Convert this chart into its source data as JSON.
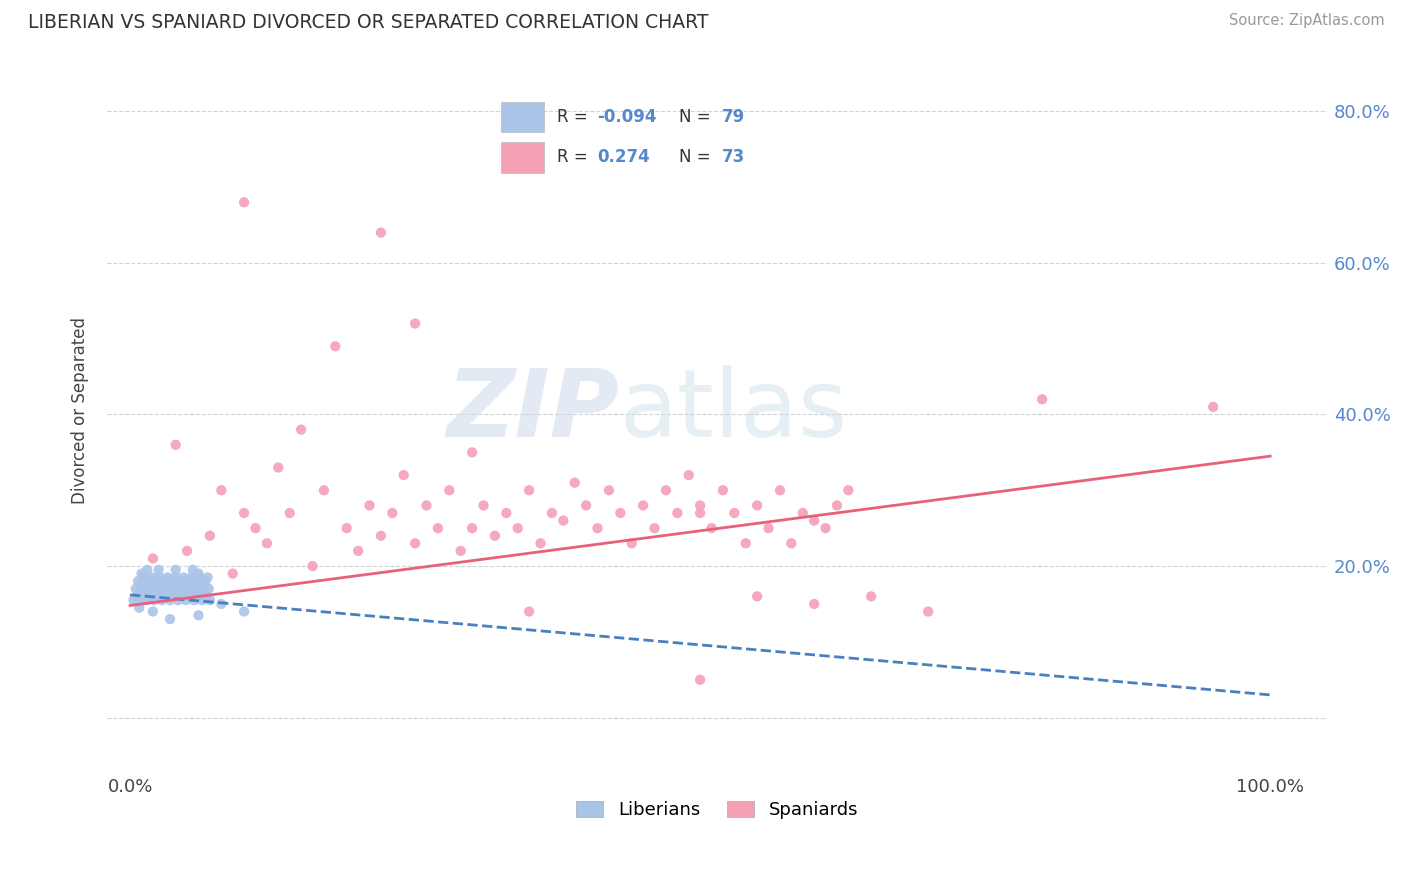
{
  "title": "LIBERIAN VS SPANIARD DIVORCED OR SEPARATED CORRELATION CHART",
  "source_text": "Source: ZipAtlas.com",
  "ylabel": "Divorced or Separated",
  "liberian_color": "#aac4e8",
  "spaniard_color": "#f5a0b5",
  "liberian_line_color": "#4a80c0",
  "spaniard_line_color": "#e8607a",
  "watermark_zip": "ZIP",
  "watermark_atlas": "atlas",
  "R_liberian": -0.094,
  "N_liberian": 79,
  "R_spaniard": 0.274,
  "N_spaniard": 73,
  "legend_labels": [
    "Liberians",
    "Spaniards"
  ],
  "liberian_points": [
    [
      0.003,
      0.155
    ],
    [
      0.005,
      0.17
    ],
    [
      0.006,
      0.16
    ],
    [
      0.007,
      0.18
    ],
    [
      0.008,
      0.165
    ],
    [
      0.009,
      0.155
    ],
    [
      0.01,
      0.175
    ],
    [
      0.011,
      0.185
    ],
    [
      0.012,
      0.16
    ],
    [
      0.013,
      0.17
    ],
    [
      0.014,
      0.155
    ],
    [
      0.015,
      0.18
    ],
    [
      0.016,
      0.165
    ],
    [
      0.017,
      0.175
    ],
    [
      0.018,
      0.16
    ],
    [
      0.019,
      0.185
    ],
    [
      0.02,
      0.17
    ],
    [
      0.021,
      0.155
    ],
    [
      0.022,
      0.175
    ],
    [
      0.023,
      0.165
    ],
    [
      0.024,
      0.18
    ],
    [
      0.025,
      0.16
    ],
    [
      0.026,
      0.185
    ],
    [
      0.027,
      0.17
    ],
    [
      0.028,
      0.155
    ],
    [
      0.029,
      0.175
    ],
    [
      0.03,
      0.165
    ],
    [
      0.031,
      0.18
    ],
    [
      0.032,
      0.16
    ],
    [
      0.033,
      0.185
    ],
    [
      0.034,
      0.17
    ],
    [
      0.035,
      0.155
    ],
    [
      0.036,
      0.175
    ],
    [
      0.037,
      0.165
    ],
    [
      0.038,
      0.18
    ],
    [
      0.039,
      0.16
    ],
    [
      0.04,
      0.185
    ],
    [
      0.041,
      0.17
    ],
    [
      0.042,
      0.155
    ],
    [
      0.043,
      0.175
    ],
    [
      0.044,
      0.165
    ],
    [
      0.045,
      0.18
    ],
    [
      0.046,
      0.16
    ],
    [
      0.047,
      0.185
    ],
    [
      0.048,
      0.17
    ],
    [
      0.049,
      0.155
    ],
    [
      0.05,
      0.175
    ],
    [
      0.051,
      0.165
    ],
    [
      0.052,
      0.18
    ],
    [
      0.053,
      0.16
    ],
    [
      0.054,
      0.185
    ],
    [
      0.055,
      0.17
    ],
    [
      0.056,
      0.155
    ],
    [
      0.057,
      0.175
    ],
    [
      0.058,
      0.165
    ],
    [
      0.059,
      0.18
    ],
    [
      0.06,
      0.16
    ],
    [
      0.061,
      0.185
    ],
    [
      0.062,
      0.17
    ],
    [
      0.063,
      0.155
    ],
    [
      0.064,
      0.175
    ],
    [
      0.065,
      0.165
    ],
    [
      0.066,
      0.18
    ],
    [
      0.067,
      0.16
    ],
    [
      0.068,
      0.185
    ],
    [
      0.069,
      0.17
    ],
    [
      0.07,
      0.155
    ],
    [
      0.008,
      0.145
    ],
    [
      0.02,
      0.14
    ],
    [
      0.035,
      0.13
    ],
    [
      0.06,
      0.135
    ],
    [
      0.08,
      0.15
    ],
    [
      0.1,
      0.14
    ],
    [
      0.015,
      0.195
    ],
    [
      0.025,
      0.195
    ],
    [
      0.01,
      0.19
    ],
    [
      0.04,
      0.195
    ],
    [
      0.055,
      0.195
    ],
    [
      0.06,
      0.19
    ]
  ],
  "spaniard_points": [
    [
      0.02,
      0.21
    ],
    [
      0.04,
      0.36
    ],
    [
      0.05,
      0.22
    ],
    [
      0.07,
      0.24
    ],
    [
      0.08,
      0.3
    ],
    [
      0.09,
      0.19
    ],
    [
      0.1,
      0.27
    ],
    [
      0.11,
      0.25
    ],
    [
      0.12,
      0.23
    ],
    [
      0.13,
      0.33
    ],
    [
      0.14,
      0.27
    ],
    [
      0.15,
      0.38
    ],
    [
      0.16,
      0.2
    ],
    [
      0.17,
      0.3
    ],
    [
      0.18,
      0.49
    ],
    [
      0.19,
      0.25
    ],
    [
      0.2,
      0.22
    ],
    [
      0.21,
      0.28
    ],
    [
      0.22,
      0.24
    ],
    [
      0.23,
      0.27
    ],
    [
      0.24,
      0.32
    ],
    [
      0.25,
      0.23
    ],
    [
      0.26,
      0.28
    ],
    [
      0.27,
      0.25
    ],
    [
      0.28,
      0.3
    ],
    [
      0.29,
      0.22
    ],
    [
      0.3,
      0.35
    ],
    [
      0.31,
      0.28
    ],
    [
      0.32,
      0.24
    ],
    [
      0.33,
      0.27
    ],
    [
      0.34,
      0.25
    ],
    [
      0.35,
      0.3
    ],
    [
      0.36,
      0.23
    ],
    [
      0.37,
      0.27
    ],
    [
      0.38,
      0.26
    ],
    [
      0.39,
      0.31
    ],
    [
      0.4,
      0.28
    ],
    [
      0.41,
      0.25
    ],
    [
      0.42,
      0.3
    ],
    [
      0.43,
      0.27
    ],
    [
      0.44,
      0.23
    ],
    [
      0.45,
      0.28
    ],
    [
      0.46,
      0.25
    ],
    [
      0.47,
      0.3
    ],
    [
      0.48,
      0.27
    ],
    [
      0.49,
      0.32
    ],
    [
      0.5,
      0.28
    ],
    [
      0.51,
      0.25
    ],
    [
      0.52,
      0.3
    ],
    [
      0.53,
      0.27
    ],
    [
      0.54,
      0.23
    ],
    [
      0.55,
      0.28
    ],
    [
      0.56,
      0.25
    ],
    [
      0.57,
      0.3
    ],
    [
      0.58,
      0.23
    ],
    [
      0.59,
      0.27
    ],
    [
      0.6,
      0.26
    ],
    [
      0.61,
      0.25
    ],
    [
      0.62,
      0.28
    ],
    [
      0.63,
      0.3
    ],
    [
      0.1,
      0.68
    ],
    [
      0.22,
      0.64
    ],
    [
      0.35,
      0.14
    ],
    [
      0.5,
      0.27
    ],
    [
      0.55,
      0.16
    ],
    [
      0.6,
      0.15
    ],
    [
      0.65,
      0.16
    ],
    [
      0.7,
      0.14
    ],
    [
      0.8,
      0.42
    ],
    [
      0.95,
      0.41
    ],
    [
      0.5,
      0.05
    ],
    [
      0.25,
      0.52
    ],
    [
      0.3,
      0.25
    ]
  ]
}
